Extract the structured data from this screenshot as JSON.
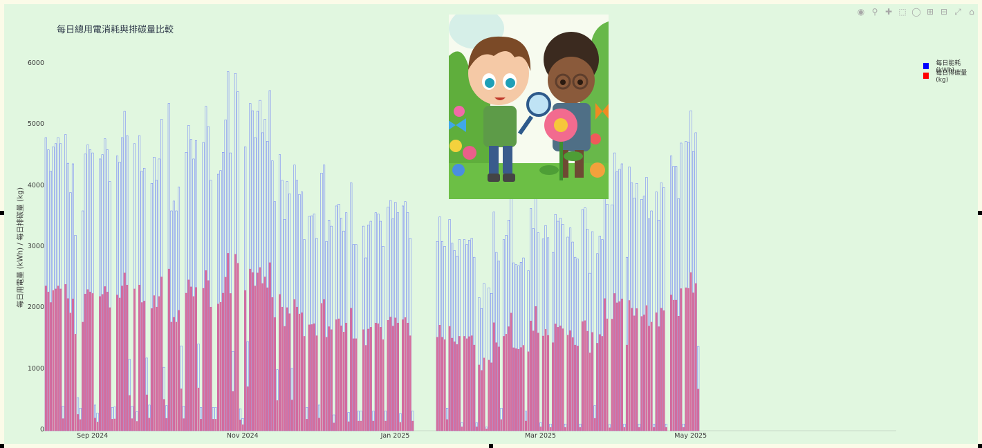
{
  "chart_data": {
    "type": "bar",
    "title": "每日總用電消耗與排碳量比較",
    "ylabel": "每日用電量 (kWh) / 每日排碳量 (kg)",
    "ylim": [
      0,
      6000
    ],
    "yticks": [
      "0",
      "1000",
      "2000",
      "3000",
      "4000",
      "5000",
      "6000"
    ],
    "xticks": [
      {
        "label": "Sep 2024",
        "index": 19
      },
      {
        "label": "Nov 2024",
        "index": 80
      },
      {
        "label": "Jan 2025",
        "index": 142
      },
      {
        "label": "Mar 2025",
        "index": 201
      },
      {
        "label": "May 2025",
        "index": 262
      }
    ],
    "x_start": "2024-08-13",
    "x_end": "2025-06-22",
    "bar_mode": "overlay",
    "emission_factor": 0.494,
    "legend_position": "top-right",
    "colors": {
      "energy": "#0000ff",
      "emission": "#ff0000"
    },
    "series": [
      {
        "name": "每日能耗 (kWh)",
        "values": [
          4800,
          4600,
          4250,
          4650,
          4700,
          4800,
          4700,
          400,
          4850,
          4380,
          3900,
          4370,
          3200,
          540,
          370,
          3600,
          4530,
          4680,
          4600,
          4550,
          420,
          290,
          4450,
          4520,
          4780,
          4600,
          4080,
          380,
          390,
          4500,
          4400,
          4800,
          5230,
          4830,
          1170,
          400,
          4700,
          310,
          4830,
          4250,
          4300,
          1190,
          420,
          4050,
          4480,
          4100,
          4450,
          5100,
          1040,
          410,
          5360,
          3600,
          3760,
          3600,
          3990,
          1390,
          400,
          4560,
          5000,
          4770,
          4450,
          4750,
          1420,
          380,
          4720,
          5310,
          4980,
          4100,
          380,
          380,
          4200,
          4260,
          4560,
          5090,
          5880,
          4550,
          1300,
          5850,
          5550,
          360,
          200,
          4650,
          1460,
          5360,
          5240,
          4800,
          5230,
          5410,
          4880,
          5100,
          4740,
          5570,
          4420,
          3750,
          1000,
          4520,
          4100,
          3460,
          4080,
          3880,
          1020,
          4350,
          4100,
          3870,
          3910,
          3130,
          380,
          3510,
          3520,
          3550,
          3150,
          420,
          4220,
          4350,
          3100,
          3450,
          3350,
          260,
          3680,
          3710,
          3480,
          3270,
          3570,
          300,
          4060,
          3050,
          3050,
          320,
          320,
          3350,
          2830,
          3370,
          3430,
          320,
          3570,
          3550,
          3430,
          3020,
          320,
          3660,
          3770,
          3470,
          3740,
          3570,
          280,
          3680,
          3750,
          3570,
          3150,
          320,
          0,
          0,
          0,
          0,
          0,
          0,
          0,
          0,
          0,
          3100,
          3500,
          3100,
          3020,
          370,
          3460,
          3070,
          2950,
          2860,
          3130,
          130,
          3130,
          3050,
          3120,
          3150,
          2840,
          130,
          2180,
          2000,
          2410,
          60,
          2340,
          2250,
          3580,
          2920,
          2780,
          370,
          3130,
          3200,
          3450,
          3900,
          2750,
          2720,
          2700,
          2760,
          2830,
          320,
          2620,
          3640,
          3310,
          4120,
          3240,
          130,
          3140,
          3360,
          3160,
          110,
          2920,
          3540,
          3430,
          3480,
          3380,
          110,
          3170,
          3320,
          3090,
          2840,
          2810,
          110,
          3620,
          3650,
          3300,
          2580,
          3260,
          410,
          2900,
          3190,
          3130,
          4380,
          3710,
          100,
          3700,
          4550,
          4240,
          4280,
          4370,
          110,
          2840,
          4320,
          4060,
          3810,
          4050,
          110,
          3790,
          3840,
          4150,
          3470,
          3600,
          110,
          3910,
          3450,
          4060,
          3980,
          110,
          0,
          4500,
          4330,
          4330,
          3800,
          4710,
          110,
          4740,
          4720,
          5240,
          4570,
          4880,
          1380
        ],
        "color": "#0000ff"
      },
      {
        "name": "每日排碳量 (kg)",
        "values": [
          2371,
          2272,
          2100,
          2297,
          2322,
          2371,
          2322,
          198,
          2396,
          2164,
          1927,
          2159,
          1581,
          267,
          183,
          1778,
          2238,
          2312,
          2272,
          2248,
          207,
          143,
          2198,
          2233,
          2361,
          2272,
          2016,
          188,
          193,
          2223,
          2174,
          2371,
          2584,
          2386,
          578,
          198,
          2322,
          153,
          2386,
          2100,
          2124,
          588,
          207,
          2001,
          2213,
          2025,
          2198,
          2519,
          514,
          203,
          2648,
          1778,
          1857,
          1778,
          1971,
          687,
          198,
          2253,
          2470,
          2356,
          2198,
          2347,
          701,
          188,
          2332,
          2623,
          2460,
          2025,
          188,
          188,
          2075,
          2104,
          2253,
          2514,
          2905,
          2248,
          642,
          2890,
          2742,
          178,
          99,
          2297,
          721,
          2648,
          2589,
          2371,
          2584,
          2673,
          2411,
          2519,
          2342,
          2752,
          2183,
          1853,
          494,
          2233,
          2025,
          1709,
          2016,
          1917,
          504,
          2149,
          2025,
          1912,
          1932,
          1546,
          188,
          1734,
          1739,
          1754,
          1556,
          207,
          2085,
          2149,
          1531,
          1704,
          1655,
          128,
          1818,
          1833,
          1719,
          1615,
          1764,
          148,
          2006,
          1507,
          1507,
          158,
          158,
          1655,
          1398,
          1665,
          1694,
          158,
          1764,
          1754,
          1694,
          1492,
          158,
          1808,
          1862,
          1714,
          1848,
          1764,
          138,
          1818,
          1853,
          1764,
          1556,
          158,
          0,
          0,
          0,
          0,
          0,
          0,
          0,
          0,
          0,
          1531,
          1729,
          1531,
          1492,
          183,
          1709,
          1517,
          1457,
          1413,
          1546,
          64,
          1546,
          1507,
          1541,
          1556,
          1403,
          64,
          1077,
          988,
          1191,
          30,
          1156,
          1112,
          1769,
          1442,
          1373,
          183,
          1546,
          1581,
          1704,
          1927,
          1359,
          1344,
          1334,
          1363,
          1398,
          158,
          1294,
          1798,
          1635,
          2035,
          1601,
          64,
          1551,
          1660,
          1561,
          54,
          1442,
          1749,
          1694,
          1719,
          1670,
          54,
          1566,
          1640,
          1526,
          1403,
          1388,
          54,
          1788,
          1803,
          1630,
          1275,
          1610,
          203,
          1433,
          1576,
          1546,
          2164,
          1833,
          49,
          1828,
          2248,
          2095,
          2114,
          2159,
          54,
          1403,
          2134,
          2006,
          1882,
          2001,
          54,
          1872,
          1897,
          2050,
          1714,
          1778,
          54,
          1932,
          1704,
          2006,
          1966,
          54,
          0,
          2223,
          2139,
          2139,
          1877,
          2327,
          54,
          2342,
          2332,
          2589,
          2258,
          2411,
          682
        ],
        "color": "#ff0000"
      }
    ]
  },
  "modebar_icons": [
    "camera-icon",
    "zoom-icon",
    "pan-icon",
    "box-select-icon",
    "lasso-icon",
    "zoom-in-icon",
    "zoom-out-icon",
    "autoscale-icon",
    "home-icon",
    "plotly-logo-icon"
  ]
}
